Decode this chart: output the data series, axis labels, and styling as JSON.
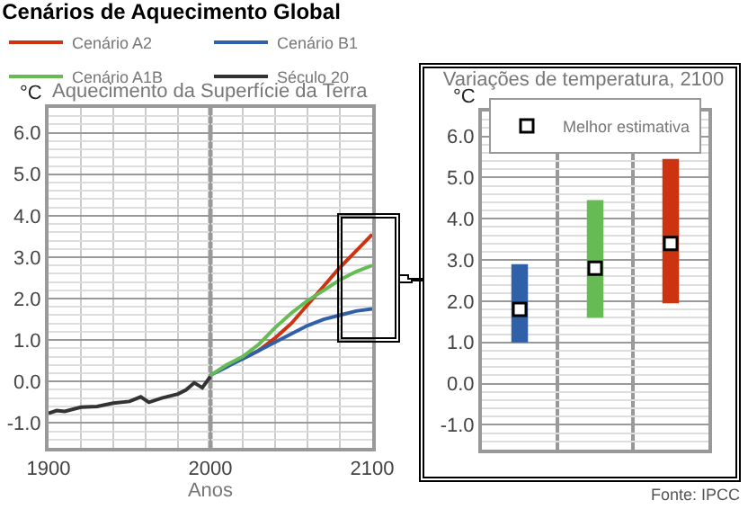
{
  "chart_data": [
    {
      "type": "line",
      "title": "Cenários de Aquecimento Global",
      "subtitle": "Aquecimento da Superfície da Terra",
      "xlabel": "Anos",
      "ylabel": "°C",
      "xlim": [
        1900,
        2100
      ],
      "xticks": [
        1900,
        2000,
        2100
      ],
      "ylim": [
        -1.6,
        6.6
      ],
      "yticks": [
        {
          "value": -1,
          "label": "-1.0"
        },
        {
          "value": 0,
          "label": "0.0"
        },
        {
          "value": 1,
          "label": "1.0"
        },
        {
          "value": 2,
          "label": "2.0"
        },
        {
          "value": 3,
          "label": "3.0"
        },
        {
          "value": 4,
          "label": "4.0"
        },
        {
          "value": 5,
          "label": "5.0"
        },
        {
          "value": 6,
          "label": "6.0"
        }
      ],
      "grid": true,
      "legend": "top",
      "ref_lines": [
        {
          "axis": "x",
          "value": 2000,
          "color": "#999999"
        }
      ],
      "series": [
        {
          "name": "Cenário A2",
          "color": "#cc3311",
          "x": [
            2020,
            2030,
            2040,
            2050,
            2060,
            2070,
            2080,
            2090,
            2100
          ],
          "values": [
            0.55,
            0.75,
            1.05,
            1.4,
            1.85,
            2.3,
            2.75,
            3.15,
            3.55
          ]
        },
        {
          "name": "Cenário B1",
          "color": "#3060a8",
          "x": [
            2000,
            2010,
            2020,
            2030,
            2040,
            2050,
            2060,
            2070,
            2080,
            2090,
            2100
          ],
          "values": [
            0.15,
            0.35,
            0.55,
            0.75,
            0.95,
            1.15,
            1.35,
            1.5,
            1.6,
            1.7,
            1.75
          ]
        },
        {
          "name": "Cenário A1B",
          "color": "#66bb55",
          "x": [
            2000,
            2010,
            2020,
            2030,
            2040,
            2050,
            2060,
            2070,
            2080,
            2090,
            2100
          ],
          "values": [
            0.15,
            0.4,
            0.6,
            0.9,
            1.3,
            1.65,
            1.95,
            2.2,
            2.45,
            2.65,
            2.8
          ]
        },
        {
          "name": "Século 20",
          "color": "#333333",
          "x": [
            1900,
            1905,
            1910,
            1920,
            1930,
            1940,
            1950,
            1957,
            1962,
            1970,
            1980,
            1985,
            1990,
            1995,
            2000
          ],
          "values": [
            -0.77,
            -0.7,
            -0.72,
            -0.62,
            -0.6,
            -0.52,
            -0.48,
            -0.37,
            -0.5,
            -0.4,
            -0.3,
            -0.2,
            -0.03,
            -0.15,
            0.12
          ]
        }
      ]
    },
    {
      "type": "bar",
      "title": "Variações de temperatura, 2100",
      "ylabel": "°C",
      "categories": [
        null,
        null,
        null
      ],
      "ylim": [
        -1.6,
        6.6
      ],
      "yticks": [
        {
          "value": -1,
          "label": "-1.0"
        },
        {
          "value": 0,
          "label": "0.0"
        },
        {
          "value": 1,
          "label": "1.0"
        },
        {
          "value": 2,
          "label": "2.0"
        },
        {
          "value": 3,
          "label": "3.0"
        },
        {
          "value": 4,
          "label": "4.0"
        },
        {
          "value": 5,
          "label": "5.0"
        },
        {
          "value": 6,
          "label": "6.0"
        }
      ],
      "grid": true,
      "legend": "top",
      "annotations": [
        "Fonte: IPCC"
      ],
      "series": [
        {
          "type": "bar",
          "colors": [
            "#3060a8",
            "#66bb55",
            "#cc3311"
          ],
          "values": [
            1.9,
            2.85,
            3.5
          ],
          "base": [
            1.0,
            1.6,
            1.95
          ]
        },
        {
          "type": "scatter",
          "name": "Melhor estimativa",
          "color": "#ffffff",
          "marker": "square",
          "values": [
            1.8,
            2.8,
            3.4
          ]
        }
      ]
    }
  ]
}
